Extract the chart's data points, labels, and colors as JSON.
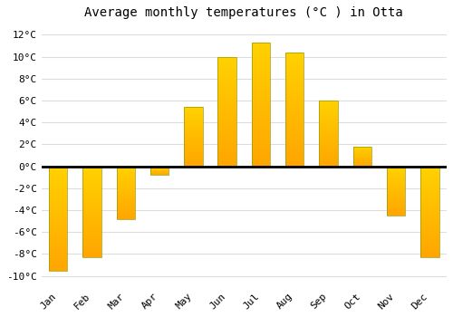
{
  "months": [
    "Jan",
    "Feb",
    "Mar",
    "Apr",
    "May",
    "Jun",
    "Jul",
    "Aug",
    "Sep",
    "Oct",
    "Nov",
    "Dec"
  ],
  "temperatures": [
    -9.5,
    -8.3,
    -4.8,
    -0.8,
    5.4,
    10.0,
    11.3,
    10.4,
    6.0,
    1.8,
    -4.5,
    -8.3
  ],
  "bar_color_top": "#FFD700",
  "bar_color_bottom": "#FFA500",
  "bar_edge_color": "#999900",
  "bar_edge_width": 0.5,
  "title": "Average monthly temperatures (°C ) in Otta",
  "title_fontsize": 10,
  "ylim": [
    -11,
    13
  ],
  "yticks": [
    -10,
    -8,
    -6,
    -4,
    -2,
    0,
    2,
    4,
    6,
    8,
    10,
    12
  ],
  "ytick_labels": [
    "-10°C",
    "-8°C",
    "-6°C",
    "-4°C",
    "-2°C",
    "0°C",
    "2°C",
    "4°C",
    "6°C",
    "8°C",
    "10°C",
    "12°C"
  ],
  "background_color": "#ffffff",
  "grid_color": "#dddddd",
  "zero_line_color": "#000000",
  "tick_fontsize": 8,
  "bar_width": 0.55
}
